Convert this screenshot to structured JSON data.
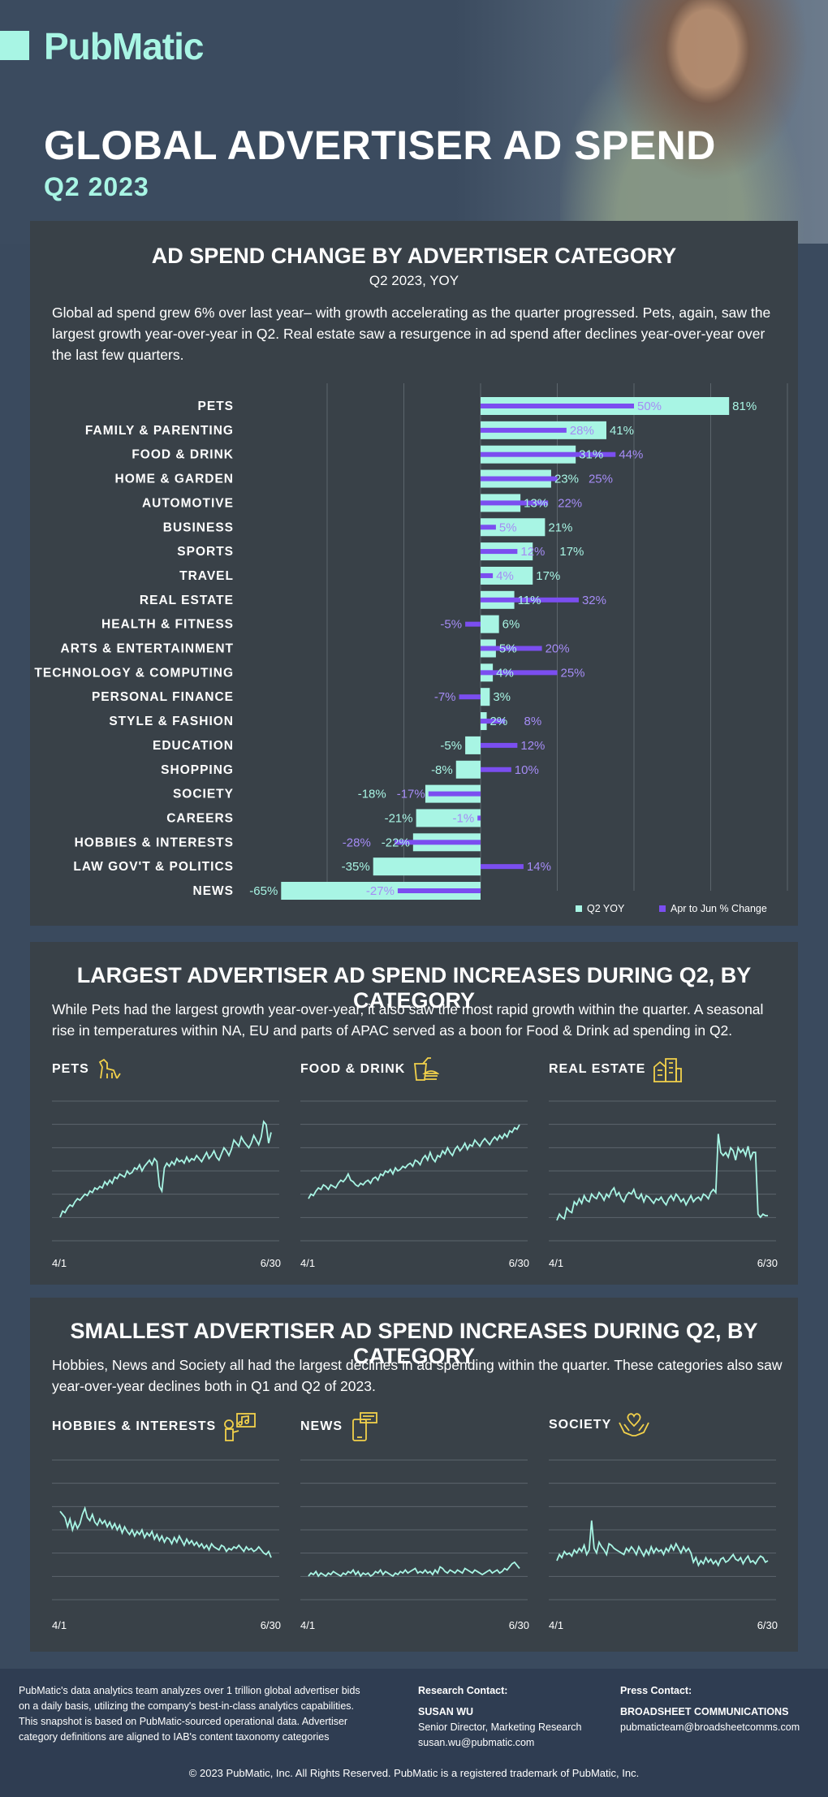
{
  "header": {
    "logo": "PubMatic",
    "title": "GLOBAL ADVERTISER AD SPEND",
    "subtitle": "Q2 2023"
  },
  "colors": {
    "accent": "#a8f5e4",
    "purple": "#7b4ef0",
    "panel": "#394148",
    "background": "#3a4a5e"
  },
  "section1": {
    "title": "AD SPEND CHANGE BY ADVERTISER CATEGORY",
    "subtitle": "Q2 2023, YOY",
    "description": "Global ad spend grew 6% over last year– with growth accelerating as the quarter progressed. Pets, again, saw the largest growth year-over-year in Q2. Real estate saw a resurgence in ad spend after declines year-over-year over the last few quarters."
  },
  "chart_data": [
    {
      "type": "bar",
      "orientation": "horizontal",
      "categories": [
        "PETS",
        "FAMILY & PARENTING",
        "FOOD & DRINK",
        "HOME & GARDEN",
        "AUTOMOTIVE",
        "BUSINESS",
        "SPORTS",
        "TRAVEL",
        "REAL ESTATE",
        "HEALTH & FITNESS",
        "ARTS & ENTERTAINMENT",
        "TECHNOLOGY & COMPUTING",
        "PERSONAL FINANCE",
        "STYLE & FASHION",
        "EDUCATION",
        "SHOPPING",
        "SOCIETY",
        "CAREERS",
        "HOBBIES & INTERESTS",
        "LAW GOV'T & POLITICS",
        "NEWS"
      ],
      "series": [
        {
          "name": "Q2 YOY",
          "color": "#a8f5e4",
          "values": [
            81,
            41,
            31,
            23,
            13,
            21,
            17,
            17,
            11,
            6,
            5,
            4,
            3,
            2,
            -5,
            -8,
            -18,
            -21,
            -22,
            -35,
            -65
          ]
        },
        {
          "name": "Apr to Jun % Change",
          "color": "#7b4ef0",
          "values": [
            50,
            28,
            44,
            25,
            22,
            5,
            12,
            4,
            32,
            -5,
            20,
            25,
            -7,
            8,
            12,
            10,
            -17,
            -1,
            -28,
            14,
            -27
          ]
        }
      ],
      "xlim": [
        -65,
        100
      ],
      "grid": true,
      "legend": "bottom-right"
    },
    {
      "type": "line",
      "title": "PETS",
      "x_start": "4/1",
      "x_end": "6/30",
      "icon": "dog-icon",
      "values": [
        10,
        14,
        13,
        16,
        18,
        17,
        20,
        22,
        21,
        23,
        25,
        24,
        27,
        26,
        29,
        28,
        30,
        29,
        33,
        31,
        34,
        32,
        36,
        35,
        38,
        37,
        36,
        40,
        38,
        39,
        42,
        41,
        44,
        40,
        43,
        45,
        47,
        44,
        48,
        46,
        30,
        27,
        42,
        45,
        43,
        46,
        44,
        48,
        46,
        47,
        45,
        49,
        46,
        48,
        47,
        50,
        48,
        46,
        49,
        52,
        48,
        50,
        53,
        49,
        47,
        51,
        55,
        53,
        50,
        54,
        60,
        58,
        56,
        62,
        59,
        57,
        55,
        58,
        63,
        60,
        57,
        62,
        72,
        70,
        58,
        65
      ]
    },
    {
      "type": "line",
      "title": "FOOD & DRINK",
      "x_start": "4/1",
      "x_end": "6/30",
      "icon": "food-drink-icon",
      "values": [
        22,
        25,
        24,
        27,
        29,
        28,
        31,
        30,
        28,
        31,
        30,
        29,
        32,
        34,
        33,
        35,
        38,
        34,
        33,
        31,
        30,
        32,
        31,
        33,
        34,
        32,
        35,
        36,
        34,
        38,
        37,
        40,
        39,
        41,
        38,
        42,
        40,
        41,
        43,
        42,
        44,
        45,
        43,
        47,
        46,
        44,
        48,
        50,
        47,
        52,
        48,
        46,
        50,
        49,
        53,
        51,
        55,
        52,
        50,
        54,
        56,
        53,
        55,
        58,
        54,
        57,
        56,
        60,
        58,
        56,
        59,
        61,
        59,
        57,
        60,
        62,
        60,
        63,
        61,
        64,
        62,
        66,
        65,
        68,
        67,
        70
      ]
    },
    {
      "type": "line",
      "title": "REAL ESTATE",
      "x_start": "4/1",
      "x_end": "6/30",
      "icon": "building-icon",
      "values": [
        8,
        12,
        10,
        9,
        16,
        14,
        13,
        20,
        18,
        22,
        19,
        24,
        21,
        20,
        25,
        23,
        22,
        26,
        24,
        21,
        25,
        23,
        27,
        29,
        24,
        26,
        22,
        20,
        24,
        26,
        25,
        28,
        23,
        22,
        25,
        20,
        24,
        23,
        21,
        19,
        22,
        21,
        23,
        20,
        18,
        22,
        24,
        21,
        25,
        23,
        20,
        22,
        18,
        21,
        24,
        20,
        22,
        23,
        21,
        25,
        24,
        22,
        26,
        28,
        26,
        64,
        52,
        50,
        52,
        49,
        55,
        53,
        47,
        55,
        52,
        54,
        50,
        56,
        48,
        52,
        52,
        12,
        10,
        12,
        11,
        11
      ]
    },
    {
      "type": "line",
      "title": "HOBBIES & INTERESTS",
      "x_start": "4/1",
      "x_end": "6/30",
      "icon": "hobbies-icon",
      "values": [
        52,
        50,
        48,
        42,
        47,
        40,
        45,
        41,
        44,
        50,
        54,
        48,
        46,
        50,
        45,
        43,
        47,
        44,
        46,
        42,
        45,
        41,
        44,
        40,
        43,
        38,
        42,
        39,
        37,
        40,
        36,
        39,
        37,
        40,
        35,
        38,
        36,
        39,
        34,
        37,
        33,
        36,
        32,
        35,
        34,
        31,
        35,
        32,
        36,
        33,
        30,
        34,
        31,
        33,
        30,
        32,
        29,
        31,
        28,
        30,
        27,
        31,
        29,
        28,
        27,
        30,
        29,
        26,
        28,
        27,
        29,
        28,
        30,
        28,
        26,
        29,
        27,
        28,
        26,
        27,
        29,
        27,
        25,
        24,
        26,
        22
      ]
    },
    {
      "type": "line",
      "title": "NEWS",
      "x_start": "4/1",
      "x_end": "6/30",
      "icon": "news-icon",
      "values": [
        10,
        12,
        11,
        13,
        10,
        12,
        11,
        10,
        12,
        11,
        13,
        12,
        11,
        10,
        12,
        11,
        13,
        12,
        14,
        11,
        13,
        10,
        12,
        11,
        12,
        10,
        11,
        13,
        12,
        14,
        11,
        13,
        12,
        11,
        10,
        12,
        11,
        13,
        12,
        14,
        12,
        13,
        14,
        15,
        12,
        13,
        12,
        14,
        12,
        13,
        11,
        14,
        12,
        16,
        15,
        13,
        12,
        14,
        13,
        12,
        14,
        13,
        12,
        15,
        14,
        13,
        12,
        14,
        13,
        12,
        11,
        12,
        13,
        14,
        12,
        13,
        14,
        12,
        13,
        15,
        14,
        16,
        18,
        19,
        17,
        15
      ]
    },
    {
      "type": "line",
      "title": "SOCIETY",
      "x_start": "4/1",
      "x_end": "6/30",
      "icon": "hands-heart-icon",
      "values": [
        20,
        24,
        22,
        26,
        24,
        25,
        23,
        27,
        25,
        28,
        26,
        30,
        24,
        27,
        46,
        28,
        25,
        32,
        29,
        27,
        24,
        31,
        30,
        28,
        27,
        26,
        25,
        24,
        28,
        26,
        29,
        27,
        24,
        29,
        26,
        23,
        27,
        24,
        29,
        25,
        28,
        26,
        27,
        24,
        28,
        26,
        30,
        27,
        31,
        28,
        25,
        29,
        26,
        28,
        25,
        19,
        22,
        17,
        20,
        18,
        22,
        19,
        21,
        18,
        20,
        17,
        21,
        22,
        19,
        20,
        22,
        24,
        21,
        20,
        22,
        18,
        21,
        23,
        19,
        20,
        18,
        21,
        23,
        22,
        19,
        20
      ]
    }
  ],
  "section2": {
    "title": "LARGEST ADVERTISER AD SPEND INCREASES DURING Q2, BY CATEGORY",
    "description": "While Pets had the largest growth year-over-year, it also saw the most rapid growth within the quarter. A seasonal rise in temperatures within NA, EU and parts of APAC served as a boon for Food & Drink ad spending in Q2."
  },
  "section3": {
    "title": "SMALLEST ADVERTISER AD SPEND INCREASES DURING Q2, BY CATEGORY",
    "description": "Hobbies, News and Society all had the largest declines in ad spending within the quarter. These categories also saw year-over-year declines both in Q1 and Q2 of 2023."
  },
  "footer": {
    "about_lines": [
      "PubMatic's data analytics team analyzes over 1 trillion global advertiser bids",
      "on a daily basis, utilizing the company's best-in-class analytics capabilities.",
      "This snapshot is based on PubMatic-sourced operational data. Advertiser",
      "category definitions are aligned to IAB's content taxonomy categories"
    ],
    "research_label": "Research Contact:",
    "research_name": "SUSAN WU",
    "research_role": "Senior Director, Marketing Research",
    "research_email": "susan.wu@pubmatic.com",
    "press_label": "Press Contact:",
    "press_name": "BROADSHEET COMMUNICATIONS",
    "press_email": "pubmaticteam@broadsheetcomms.com",
    "copyright": "© 2023 PubMatic, Inc. All Rights Reserved. PubMatic is a registered trademark of PubMatic, Inc."
  }
}
